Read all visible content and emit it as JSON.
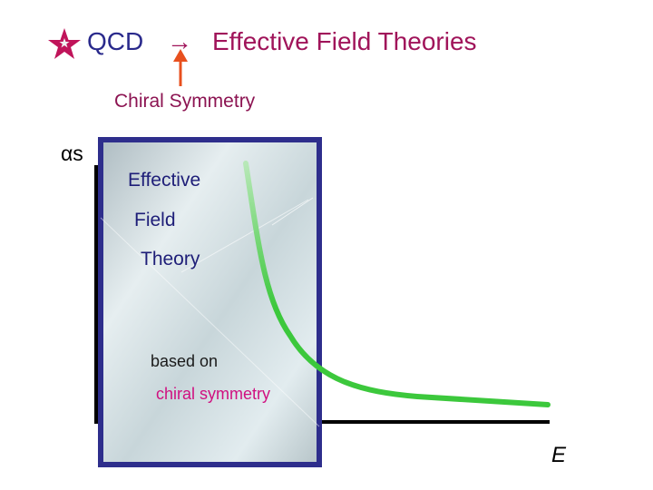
{
  "title": {
    "qcd": "QCD",
    "arrow": "→",
    "eft": "Effective Field Theories"
  },
  "annotation": {
    "chiral_symmetry": "Chiral Symmetry"
  },
  "axes": {
    "y_label": "αs",
    "x_label": "E"
  },
  "box": {
    "line1": "Effective",
    "line2": "Field",
    "line3": "Theory",
    "line4": "based on",
    "line5": "chiral symmetry"
  },
  "colors": {
    "star": "#c0145a",
    "qcd_text": "#2a2a8c",
    "eft_text": "#a0145a",
    "pointer_arrow": "#e8501e",
    "box_border": "#2e2e8c",
    "curve": "#3cc83c"
  },
  "icons": {
    "star": "star-icon",
    "pointer": "up-arrow-icon"
  }
}
